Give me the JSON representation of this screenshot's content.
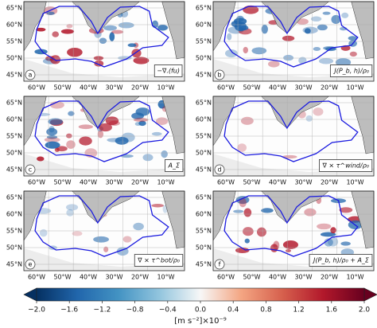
{
  "figure": {
    "lat_labels": [
      "65°N",
      "60°N",
      "55°N",
      "50°N",
      "45°N"
    ],
    "lon_labels": [
      "60°W",
      "50°W",
      "40°W",
      "30°W",
      "20°W",
      "10°W"
    ],
    "panels": [
      {
        "letter": "a",
        "label": "−∇.(fu)"
      },
      {
        "letter": "b",
        "label": "J(P_b, h)/ρ₀"
      },
      {
        "letter": "c",
        "label": "A_Σ"
      },
      {
        "letter": "d",
        "label": "∇ × τ^wind/ρ₀"
      },
      {
        "letter": "e",
        "label": "∇ × τ^bot/ρ₀"
      },
      {
        "letter": "f",
        "label": "J(P_b, h)/ρ₀ + A_Σ"
      }
    ],
    "colorbar": {
      "label": "[m s⁻²]×10⁻⁹",
      "lim": [
        -2.0,
        2.0
      ],
      "colors": [
        "#053061",
        "#2166ac",
        "#4393c3",
        "#92c5de",
        "#f7f7f7",
        "#f4a582",
        "#d6604d",
        "#b2182b",
        "#67001f"
      ],
      "ticks": [
        {
          "value": -2.0,
          "label": "−2.0"
        },
        {
          "value": -1.6,
          "label": "−1.6"
        },
        {
          "value": -1.2,
          "label": "−1.2"
        },
        {
          "value": -0.8,
          "label": "−0.8"
        },
        {
          "value": -0.4,
          "label": "−0.4"
        },
        {
          "value": 0.0,
          "label": "0.0"
        },
        {
          "value": 0.4,
          "label": "0.4"
        },
        {
          "value": 0.8,
          "label": "0.8"
        },
        {
          "value": 1.2,
          "label": "1.2"
        },
        {
          "value": 1.6,
          "label": "1.6"
        },
        {
          "value": 2.0,
          "label": "2.0"
        }
      ]
    }
  }
}
